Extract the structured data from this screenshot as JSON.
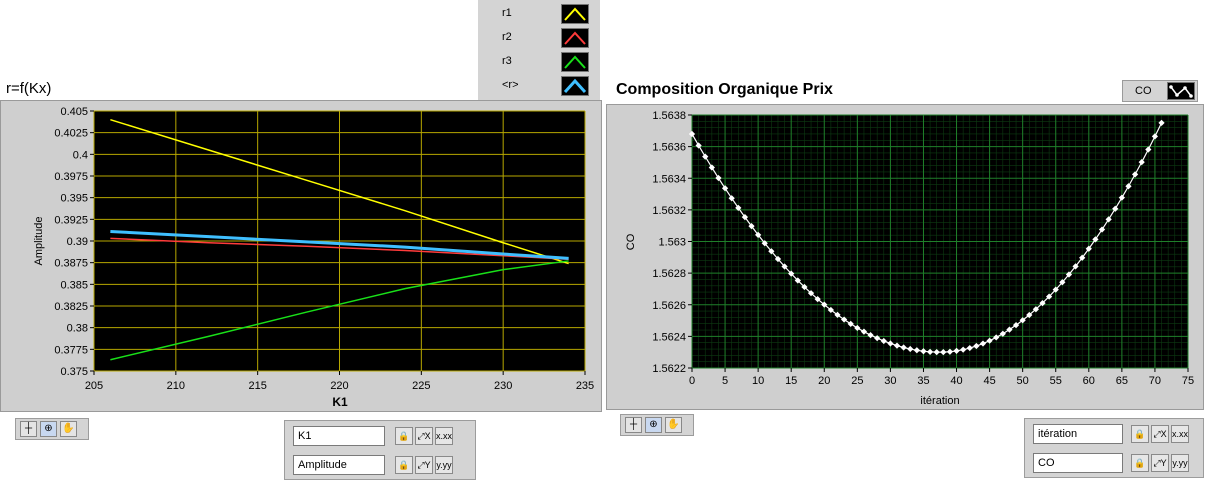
{
  "legend": {
    "items": [
      {
        "label": "r1",
        "color": "#ffff00"
      },
      {
        "label": "r2",
        "color": "#ff3b3b"
      },
      {
        "label": "r3",
        "color": "#19e019"
      },
      {
        "label": "<r>",
        "color": "#3fbfff"
      }
    ]
  },
  "left_chart": {
    "title": "r=f(Kx)",
    "x_axis_name": "K1",
    "y_axis_name": "Amplitude"
  },
  "right_chart": {
    "title": "Composition Organique Prix",
    "plot_legend_label": "CO",
    "x_axis_name": "itération",
    "y_axis_name": "CO"
  },
  "chart_data": [
    {
      "type": "line",
      "title": "r=f(Kx)",
      "xlabel": "K1",
      "ylabel": "Amplitude",
      "xlim": [
        205,
        235
      ],
      "ylim": [
        0.375,
        0.405
      ],
      "x_ticks": [
        "205",
        "210",
        "215",
        "220",
        "225",
        "230",
        "235"
      ],
      "y_ticks": [
        "0.375",
        "0.3775",
        "0.38",
        "0.3825",
        "0.385",
        "0.3875",
        "0.39",
        "0.3925",
        "0.395",
        "0.3975",
        "0.4",
        "0.4025",
        "0.405"
      ],
      "grid": true,
      "legend_position": "top-right",
      "series": [
        {
          "name": "r1",
          "color": "#ffff00",
          "x": [
            206,
            212,
            218,
            224,
            230,
            234
          ],
          "y": [
            0.404,
            0.4005,
            0.397,
            0.3935,
            0.3898,
            0.3874
          ]
        },
        {
          "name": "r2",
          "color": "#ff3b3b",
          "x": [
            206,
            212,
            218,
            224,
            230,
            234
          ],
          "y": [
            0.3903,
            0.3898,
            0.3894,
            0.3889,
            0.3883,
            0.3879
          ]
        },
        {
          "name": "r3",
          "color": "#19e019",
          "x": [
            206,
            212,
            218,
            224,
            230,
            234
          ],
          "y": [
            0.3763,
            0.379,
            0.3818,
            0.3845,
            0.3867,
            0.3877
          ]
        },
        {
          "name": "<r>",
          "color": "#3fbfff",
          "x": [
            206,
            212,
            218,
            224,
            230,
            234
          ],
          "y": [
            0.3911,
            0.3905,
            0.3899,
            0.3893,
            0.3885,
            0.388
          ]
        }
      ]
    },
    {
      "type": "line",
      "title": "Composition Organique Prix",
      "xlabel": "itération",
      "ylabel": "CO",
      "xlim": [
        0,
        75
      ],
      "ylim": [
        1.5622,
        1.5638
      ],
      "x_ticks": [
        "0",
        "5",
        "10",
        "15",
        "20",
        "25",
        "30",
        "35",
        "40",
        "45",
        "50",
        "55",
        "60",
        "65",
        "70",
        "75"
      ],
      "y_ticks": [
        "1.5622",
        "1.5624",
        "1.5626",
        "1.5628",
        "1.563",
        "1.5632",
        "1.5634",
        "1.5636",
        "1.5638"
      ],
      "grid": true,
      "legend_position": "top-right",
      "series": [
        {
          "name": "CO",
          "color": "#ffffff",
          "markers": true,
          "x_start": 0,
          "x_end": 71,
          "min_x": 37.5,
          "min_y": 1.5623,
          "y_at_start": 1.56368,
          "y_at_end": 1.56375
        }
      ]
    }
  ],
  "left_axes": {
    "x_field": "K1",
    "y_field": "Amplitude"
  },
  "right_axes": {
    "x_field": "itération",
    "y_field": "CO"
  },
  "tools": {
    "cursor_icon": "crosshair-icon",
    "zoom_icon": "zoom-icon",
    "pan_icon": "hand-icon"
  }
}
